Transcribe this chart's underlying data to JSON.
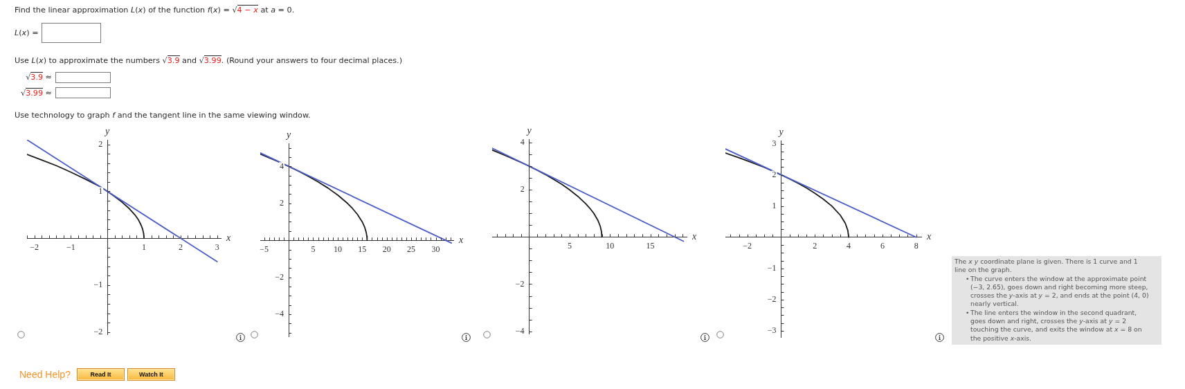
{
  "chart_data": [
    {
      "type": "other",
      "annotations": [
        "Find the linear approximation L(x) of the function f(x) = √4 − x at a = 0.",
        "L(x) =",
        "Use L(x) to approximate the numbers √3.9 and √3.99. (Round your answers to four decimal places.)",
        "√3.9 ≈",
        "√3.99 ≈",
        "Use technology to graph f and the tangent line in the same viewing window."
      ]
    },
    {
      "type": "line",
      "xlabel": "x",
      "ylabel": "y",
      "xlim": [
        -2.2,
        3.1
      ],
      "ylim": [
        -2.05,
        2.1
      ],
      "xticks": [
        {
          "value": -2.2,
          "label": null
        },
        {
          "value": -2,
          "label": "−2"
        },
        {
          "value": -1.8,
          "label": null
        },
        {
          "value": -1.6,
          "label": null
        },
        {
          "value": -1.4,
          "label": null
        },
        {
          "value": -1.2,
          "label": null
        },
        {
          "value": -1,
          "label": "−1"
        },
        {
          "value": -0.8,
          "label": null
        },
        {
          "value": -0.6,
          "label": null
        },
        {
          "value": -0.4,
          "label": null
        },
        {
          "value": -0.2,
          "label": null
        },
        {
          "value": 0.2,
          "label": null
        },
        {
          "value": 0.4,
          "label": null
        },
        {
          "value": 0.6,
          "label": null
        },
        {
          "value": 0.8,
          "label": null
        },
        1,
        {
          "value": 1.2,
          "label": null
        },
        {
          "value": 1.4,
          "label": null
        },
        {
          "value": 1.6,
          "label": null
        },
        {
          "value": 1.8,
          "label": null
        },
        2,
        {
          "value": 2.2,
          "label": null
        },
        {
          "value": 2.4,
          "label": null
        },
        {
          "value": 2.6,
          "label": null
        },
        {
          "value": 2.8,
          "label": null
        },
        3
      ],
      "yticks": [
        {
          "value": -2,
          "label": "−2"
        },
        {
          "value": -1.8,
          "label": null
        },
        {
          "value": -1.6,
          "label": null
        },
        {
          "value": -1.4,
          "label": null
        },
        {
          "value": -1.2,
          "label": null
        },
        {
          "value": -1,
          "label": "−1"
        },
        {
          "value": -0.8,
          "label": null
        },
        {
          "value": -0.6,
          "label": null
        },
        {
          "value": -0.4,
          "label": null
        },
        {
          "value": -0.2,
          "label": null
        },
        {
          "value": 0.2,
          "label": null
        },
        {
          "value": 0.4,
          "label": null
        },
        {
          "value": 0.6,
          "label": null
        },
        {
          "value": 0.8,
          "label": null
        },
        1,
        {
          "value": 1.2,
          "label": null
        },
        {
          "value": 1.4,
          "label": null
        },
        {
          "value": 1.6,
          "label": null
        },
        {
          "value": 1.8,
          "label": null
        },
        2
      ],
      "series": [
        {
          "color": "#1a1a1a",
          "x": [
            -2.2,
            -1.8,
            -1.4,
            -1,
            -0.6,
            -0.2,
            0,
            0.2,
            0.4,
            0.6,
            0.75,
            0.85,
            0.92,
            0.96,
            0.99,
            1
          ],
          "values": [
            1.79,
            1.67,
            1.55,
            1.41,
            1.26,
            1.1,
            1,
            0.89,
            0.77,
            0.63,
            0.5,
            0.39,
            0.28,
            0.2,
            0.1,
            0
          ]
        },
        {
          "color": "#4a5cc5",
          "x": [
            -2.2,
            3
          ],
          "values": [
            2.1,
            -0.5
          ]
        }
      ]
    },
    {
      "type": "line",
      "xlabel": "x",
      "ylabel": "y",
      "xlim": [
        -5.8,
        33.6
      ],
      "ylim": [
        -5.2,
        5.25
      ],
      "xticks": [
        {
          "value": -5,
          "label": "−5"
        },
        {
          "value": -4,
          "label": null
        },
        {
          "value": -3,
          "label": null
        },
        {
          "value": -2,
          "label": null
        },
        {
          "value": -1,
          "label": null
        },
        {
          "value": 1,
          "label": null
        },
        {
          "value": 2,
          "label": null
        },
        {
          "value": 3,
          "label": null
        },
        {
          "value": 4,
          "label": null
        },
        5,
        {
          "value": 6,
          "label": null
        },
        {
          "value": 7,
          "label": null
        },
        {
          "value": 8,
          "label": null
        },
        {
          "value": 9,
          "label": null
        },
        10,
        {
          "value": 11,
          "label": null
        },
        {
          "value": 12,
          "label": null
        },
        {
          "value": 13,
          "label": null
        },
        {
          "value": 14,
          "label": null
        },
        15,
        {
          "value": 16,
          "label": null
        },
        {
          "value": 17,
          "label": null
        },
        {
          "value": 18,
          "label": null
        },
        {
          "value": 19,
          "label": null
        },
        20,
        {
          "value": 21,
          "label": null
        },
        {
          "value": 22,
          "label": null
        },
        {
          "value": 23,
          "label": null
        },
        {
          "value": 24,
          "label": null
        },
        25,
        {
          "value": 26,
          "label": null
        },
        {
          "value": 27,
          "label": null
        },
        {
          "value": 28,
          "label": null
        },
        {
          "value": 29,
          "label": null
        },
        30,
        {
          "value": 31,
          "label": null
        },
        {
          "value": 32,
          "label": null
        },
        {
          "value": 33,
          "label": null
        }
      ],
      "yticks": [
        {
          "value": -5,
          "label": null
        },
        {
          "value": -4.5,
          "label": null
        },
        {
          "value": -4,
          "label": "−4"
        },
        {
          "value": -3.5,
          "label": null
        },
        {
          "value": -3,
          "label": null
        },
        {
          "value": -2.5,
          "label": null
        },
        {
          "value": -2,
          "label": "−2"
        },
        {
          "value": -1.5,
          "label": null
        },
        {
          "value": -1,
          "label": null
        },
        {
          "value": -0.5,
          "label": null
        },
        {
          "value": 0.5,
          "label": null
        },
        {
          "value": 1,
          "label": null
        },
        {
          "value": 1.5,
          "label": null
        },
        2,
        {
          "value": 2.5,
          "label": null
        },
        {
          "value": 3,
          "label": null
        },
        {
          "value": 3.5,
          "label": null
        },
        4,
        {
          "value": 4.5,
          "label": null
        },
        {
          "value": 5,
          "label": null
        }
      ],
      "series": [
        {
          "color": "#1a1a1a",
          "x": [
            -5.8,
            -4,
            -2,
            0,
            2,
            4,
            6,
            8,
            10,
            12,
            13,
            14,
            15,
            15.5,
            15.8,
            15.95,
            16
          ],
          "values": [
            4.67,
            4.47,
            4.24,
            4,
            3.74,
            3.46,
            3.16,
            2.83,
            2.45,
            2,
            1.73,
            1.41,
            1,
            0.71,
            0.45,
            0.22,
            0
          ]
        },
        {
          "color": "#4a5cc5",
          "x": [
            -5.8,
            33.2
          ],
          "values": [
            4.73,
            -0.15
          ]
        }
      ]
    },
    {
      "type": "line",
      "xlabel": "x",
      "ylabel": "y",
      "xlim": [
        -4.6,
        19.5
      ],
      "ylim": [
        -4.1,
        4.15
      ],
      "xticks": [
        {
          "value": -4,
          "label": null
        },
        {
          "value": -3,
          "label": null
        },
        {
          "value": -2,
          "label": null
        },
        {
          "value": -1,
          "label": null
        },
        {
          "value": 1,
          "label": null
        },
        {
          "value": 2,
          "label": null
        },
        {
          "value": 3,
          "label": null
        },
        {
          "value": 4,
          "label": null
        },
        5,
        {
          "value": 6,
          "label": null
        },
        {
          "value": 7,
          "label": null
        },
        {
          "value": 8,
          "label": null
        },
        {
          "value": 9,
          "label": null
        },
        10,
        {
          "value": 11,
          "label": null
        },
        {
          "value": 12,
          "label": null
        },
        {
          "value": 13,
          "label": null
        },
        {
          "value": 14,
          "label": null
        },
        15,
        {
          "value": 16,
          "label": null
        },
        {
          "value": 17,
          "label": null
        },
        {
          "value": 18,
          "label": null
        },
        {
          "value": 19,
          "label": null
        }
      ],
      "yticks": [
        {
          "value": -4,
          "label": "−4"
        },
        {
          "value": -3.5,
          "label": null
        },
        {
          "value": -3,
          "label": null
        },
        {
          "value": -2.5,
          "label": null
        },
        {
          "value": -2,
          "label": "−2"
        },
        {
          "value": -1.5,
          "label": null
        },
        {
          "value": -1,
          "label": null
        },
        {
          "value": -0.5,
          "label": null
        },
        {
          "value": 0.5,
          "label": null
        },
        {
          "value": 1,
          "label": null
        },
        {
          "value": 1.5,
          "label": null
        },
        2,
        {
          "value": 2.5,
          "label": null
        },
        {
          "value": 3,
          "label": null
        },
        {
          "value": 3.5,
          "label": null
        },
        4
      ],
      "series": [
        {
          "color": "#1a1a1a",
          "x": [
            -4.6,
            -3,
            -1,
            0,
            1,
            2,
            3,
            4,
            5,
            6,
            7,
            7.5,
            8,
            8.5,
            8.8,
            8.95,
            9
          ],
          "values": [
            3.69,
            3.46,
            3.16,
            3,
            2.83,
            2.65,
            2.45,
            2.24,
            2,
            1.73,
            1.41,
            1.22,
            1,
            0.71,
            0.45,
            0.22,
            0
          ]
        },
        {
          "color": "#4a5cc5",
          "x": [
            -4.6,
            19.1
          ],
          "values": [
            3.77,
            -0.18
          ]
        }
      ]
    },
    {
      "type": "line",
      "xlabel": "x",
      "ylabel": "y",
      "xlim": [
        -3.3,
        8.3
      ],
      "ylim": [
        -3.2,
        3.1
      ],
      "xticks": [
        {
          "value": -3,
          "label": null
        },
        {
          "value": -2.5,
          "label": null
        },
        {
          "value": -2,
          "label": "−2"
        },
        {
          "value": -1.5,
          "label": null
        },
        {
          "value": -1,
          "label": null
        },
        {
          "value": -0.5,
          "label": null
        },
        {
          "value": 0.5,
          "label": null
        },
        {
          "value": 1,
          "label": null
        },
        {
          "value": 1.5,
          "label": null
        },
        2,
        {
          "value": 2.5,
          "label": null
        },
        {
          "value": 3,
          "label": null
        },
        {
          "value": 3.5,
          "label": null
        },
        4,
        {
          "value": 4.5,
          "label": null
        },
        {
          "value": 5,
          "label": null
        },
        {
          "value": 5.5,
          "label": null
        },
        6,
        {
          "value": 6.5,
          "label": null
        },
        {
          "value": 7,
          "label": null
        },
        {
          "value": 7.5,
          "label": null
        },
        8
      ],
      "yticks": [
        {
          "value": -3,
          "label": "−3"
        },
        {
          "value": -2.75,
          "label": null
        },
        {
          "value": -2.5,
          "label": null
        },
        {
          "value": -2.25,
          "label": null
        },
        {
          "value": -2,
          "label": "−2"
        },
        {
          "value": -1.75,
          "label": null
        },
        {
          "value": -1.5,
          "label": null
        },
        {
          "value": -1.25,
          "label": null
        },
        {
          "value": -1,
          "label": "−1"
        },
        {
          "value": -0.75,
          "label": null
        },
        {
          "value": -0.5,
          "label": null
        },
        {
          "value": -0.25,
          "label": null
        },
        {
          "value": 0.25,
          "label": null
        },
        {
          "value": 0.5,
          "label": null
        },
        {
          "value": 0.75,
          "label": null
        },
        1,
        {
          "value": 1.25,
          "label": null
        },
        {
          "value": 1.5,
          "label": null
        },
        {
          "value": 1.75,
          "label": null
        },
        2,
        {
          "value": 2.25,
          "label": null
        },
        {
          "value": 2.5,
          "label": null
        },
        {
          "value": 2.75,
          "label": null
        },
        3
      ],
      "series": [
        {
          "color": "#1a1a1a",
          "x": [
            -3.3,
            -2.5,
            -2,
            -1,
            0,
            0.5,
            1,
            1.5,
            2,
            2.5,
            3,
            3.5,
            3.8,
            3.95,
            4
          ],
          "values": [
            2.7,
            2.55,
            2.45,
            2.24,
            2,
            1.87,
            1.73,
            1.58,
            1.41,
            1.22,
            1,
            0.71,
            0.45,
            0.22,
            0
          ]
        },
        {
          "color": "#4a5cc5",
          "x": [
            -3.3,
            8
          ],
          "values": [
            2.83,
            0
          ]
        }
      ],
      "annotations": [
        "The x y coordinate plane is given. There is 1 curve and 1 line on the graph.",
        "• The curve enters the window at the approximate point (−3, 2.65), goes down and right becoming more steep, crosses the y-axis at y = 2, and ends at the point (4, 0) nearly vertical.",
        "• The line enters the window in the second quadrant, goes down and right, crosses the y-axis at y = 2 touching the curve, and exits the window at x = 8 on the positive x-axis."
      ]
    },
    {
      "type": "other",
      "annotations": [
        "Need Help?",
        "Read It",
        "Watch It"
      ]
    }
  ]
}
